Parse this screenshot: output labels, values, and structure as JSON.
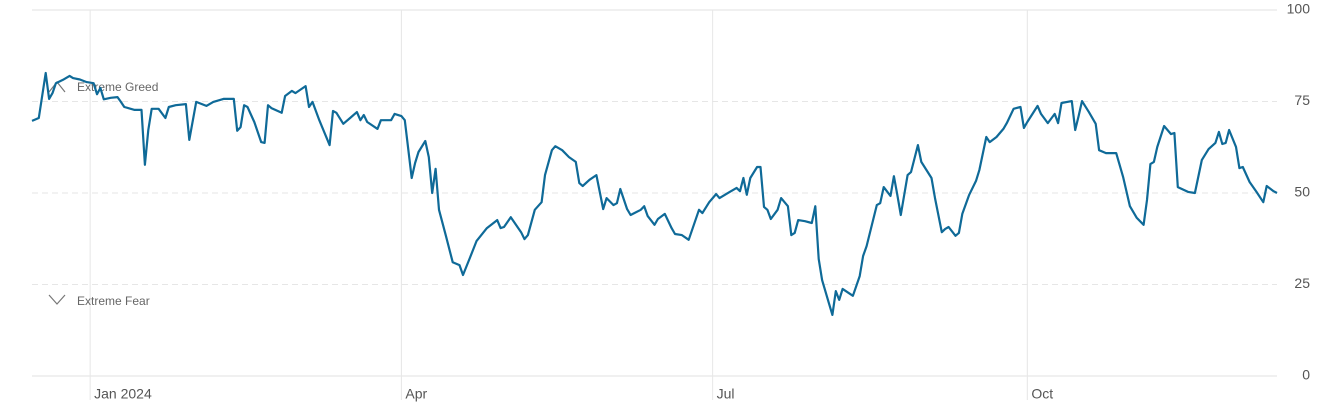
{
  "chart_data": {
    "type": "line",
    "annotations": [
      "Extreme Greed",
      "Extreme Fear"
    ],
    "xlim": [
      -17,
      347
    ],
    "xticks": [
      {
        "value": 0,
        "label": "Jan 2024"
      },
      {
        "value": 91,
        "label": "Apr"
      },
      {
        "value": 182,
        "label": "Jul"
      },
      {
        "value": 274,
        "label": "Oct"
      }
    ],
    "ylim": [
      0,
      100
    ],
    "yticks": [
      0,
      25,
      50,
      75,
      100
    ],
    "grid": true,
    "x": [
      -17,
      -15,
      -13,
      -12,
      -11,
      -10,
      -8,
      -6,
      -5,
      -3,
      -1,
      1,
      2,
      3,
      4,
      6,
      8,
      9,
      10,
      13,
      15,
      16,
      17,
      18,
      20,
      22,
      23,
      25,
      28,
      29,
      31,
      34,
      36,
      39,
      42,
      43,
      44,
      45,
      46,
      48,
      50,
      51,
      52,
      53,
      56,
      57,
      59,
      60,
      63,
      64,
      65,
      67,
      70,
      71,
      72,
      74,
      76,
      78,
      79,
      80,
      81,
      84,
      85,
      88,
      89,
      91,
      92,
      94,
      95,
      96,
      98,
      99,
      100,
      101,
      102,
      104,
      106,
      108,
      109,
      111,
      113,
      116,
      119,
      120,
      121,
      123,
      126,
      127,
      128,
      130,
      132,
      133,
      135,
      136,
      138,
      140,
      142,
      143,
      144,
      146,
      148,
      150,
      151,
      153,
      154,
      155,
      157,
      158,
      161,
      162,
      163,
      165,
      166,
      168,
      170,
      171,
      173,
      175,
      178,
      179,
      181,
      183,
      184,
      187,
      189,
      190,
      191,
      192,
      193,
      195,
      196,
      197,
      198,
      199,
      201,
      202,
      204,
      205,
      206,
      207,
      209,
      211,
      212,
      213,
      214,
      216,
      217,
      218,
      219,
      220,
      223,
      225,
      226,
      227,
      230,
      231,
      232,
      234,
      235,
      236,
      237,
      239,
      240,
      242,
      243,
      246,
      247,
      249,
      250,
      251,
      253,
      254,
      255,
      257,
      259,
      260,
      262,
      263,
      265,
      267,
      268,
      270,
      272,
      273,
      274,
      277,
      278,
      280,
      282,
      283,
      284,
      287,
      288,
      289,
      290,
      292,
      294,
      295,
      297,
      300,
      302,
      304,
      306,
      308,
      309,
      310,
      311,
      312,
      314,
      316,
      317,
      318,
      321,
      323,
      325,
      327,
      329,
      330,
      331,
      332,
      333,
      335,
      336,
      337,
      339,
      341,
      343,
      344,
      346,
      347
    ],
    "series": [
      {
        "color": "#0f6a98",
        "values": [
          69.7,
          70.5,
          82.8,
          75.7,
          77.3,
          80,
          80.9,
          82,
          81.4,
          81,
          80.3,
          80,
          77,
          78.7,
          75.6,
          76,
          76.2,
          74.9,
          73.5,
          72.7,
          72.7,
          57.7,
          67.2,
          73,
          73,
          70.5,
          73.5,
          74,
          74.3,
          64.5,
          74.9,
          73.8,
          74.9,
          75.7,
          75.7,
          67,
          68,
          74,
          73.5,
          69.4,
          63.9,
          63.7,
          74,
          73.2,
          71.9,
          76.5,
          77.9,
          77.3,
          79.2,
          73.5,
          74.9,
          69.9,
          63.1,
          72.4,
          71.9,
          68.9,
          70.5,
          72.1,
          69.9,
          71.3,
          69.4,
          67.5,
          69.9,
          69.9,
          71.6,
          71,
          69.9,
          54.1,
          58.2,
          61.2,
          64.2,
          59.8,
          50,
          56.6,
          45.4,
          38.3,
          31.1,
          30.3,
          27.6,
          32.2,
          36.9,
          40.4,
          42.6,
          40.4,
          40.7,
          43.4,
          39.3,
          37.4,
          38.5,
          45.4,
          47.5,
          54.9,
          61.7,
          62.8,
          61.7,
          59.8,
          58.5,
          52.7,
          51.9,
          53.6,
          54.9,
          45.6,
          48.6,
          46.7,
          47.2,
          51.1,
          45.6,
          44,
          45.4,
          46.4,
          43.7,
          41.3,
          42.9,
          44.3,
          40.4,
          38.8,
          38.5,
          37.2,
          45.4,
          44.5,
          47.5,
          49.7,
          48.6,
          50.3,
          51.4,
          50.5,
          54.1,
          49.5,
          54.1,
          57.1,
          57.1,
          46.2,
          45.4,
          42.9,
          45.4,
          48.6,
          46.4,
          38.5,
          39.1,
          42.6,
          42.3,
          41.8,
          46.4,
          32,
          26.2,
          19.9,
          16.7,
          23.2,
          20.8,
          23.8,
          21.9,
          27.3,
          32.8,
          35.5,
          46.7,
          47.2,
          51.6,
          49.2,
          54.6,
          49.5,
          44,
          54.9,
          55.7,
          63.1,
          58.5,
          54.1,
          48.6,
          39.3,
          40.2,
          40.7,
          38.3,
          39.1,
          44.3,
          49.5,
          53.3,
          56.3,
          65.3,
          63.9,
          65.3,
          67.5,
          69.1,
          73,
          73.5,
          67.8,
          69.4,
          73.8,
          71.6,
          69.1,
          71.6,
          69.1,
          74.6,
          75.1,
          67.2,
          71,
          75.1,
          72.1,
          68.9,
          61.7,
          60.9,
          60.9,
          54.4,
          46.4,
          43.2,
          41.3,
          48.1,
          57.9,
          58.5,
          62.6,
          68.3,
          66.1,
          66.4,
          51.6,
          50.3,
          50,
          59,
          62,
          63.7,
          66.7,
          63.4,
          63.7,
          67.2,
          62.6,
          56.8,
          57.1,
          53,
          50.3,
          47.5,
          51.9,
          50.5,
          50
        ]
      }
    ]
  }
}
